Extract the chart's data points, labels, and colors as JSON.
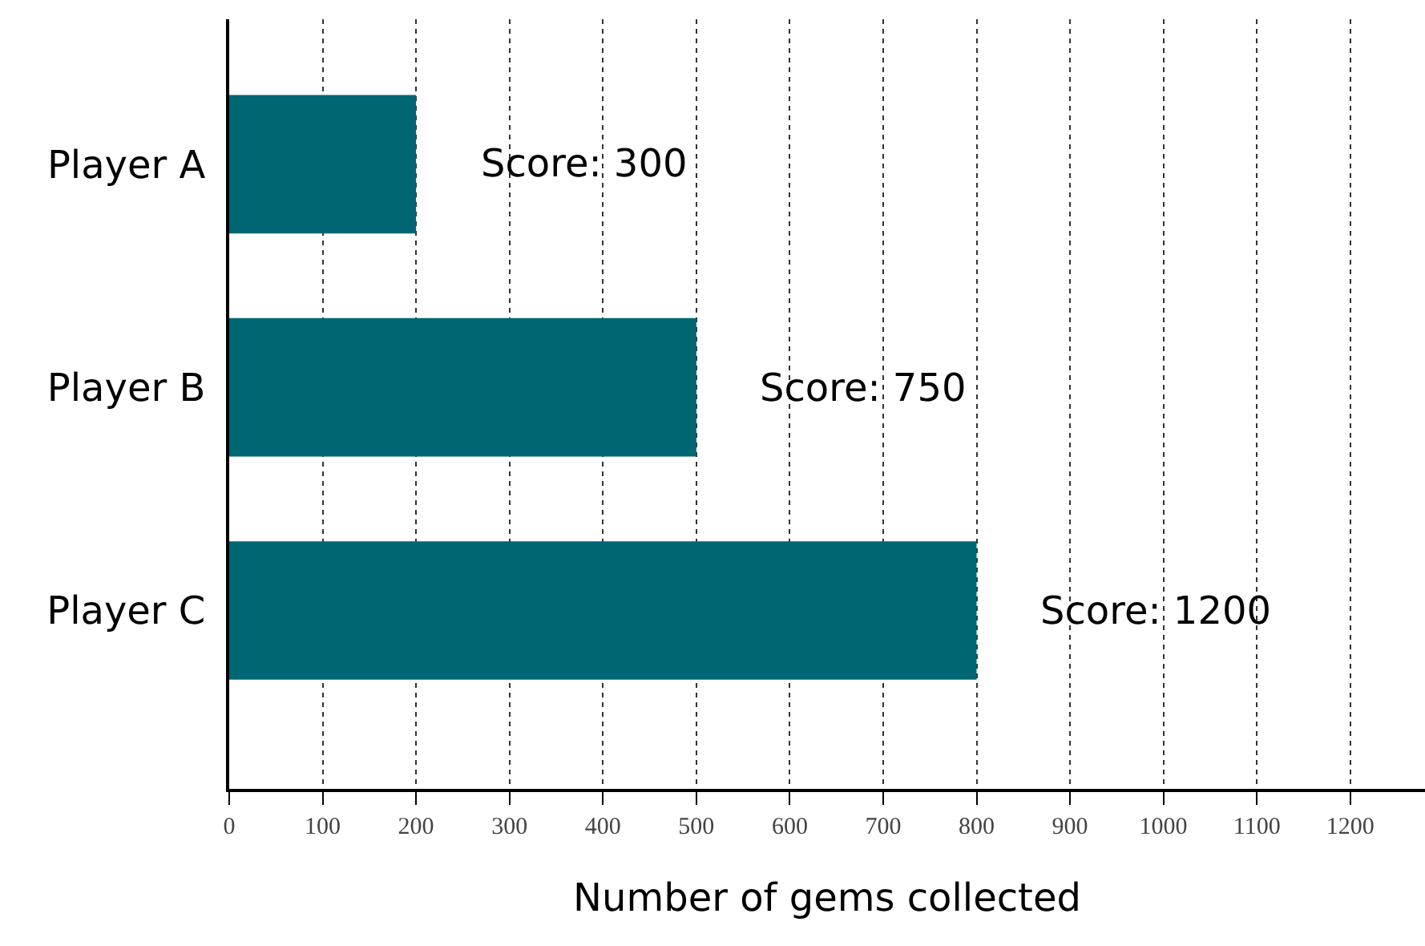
{
  "chart_data": {
    "type": "bar",
    "orientation": "horizontal",
    "xlabel": "Number of gems collected",
    "categories": [
      "Player A",
      "Player B",
      "Player C"
    ],
    "values": [
      200,
      500,
      800
    ],
    "annotations": [
      {
        "text": "Score: 300",
        "x": 200,
        "y": "Player A"
      },
      {
        "text": "Score: 750",
        "x": 500,
        "y": "Player B"
      },
      {
        "text": "Score: 1200",
        "x": 800,
        "y": "Player C"
      }
    ],
    "color": "#006674",
    "xlim": [
      0,
      1280
    ],
    "xticks": [
      0,
      100,
      200,
      300,
      400,
      500,
      600,
      700,
      800,
      900,
      1000,
      1100,
      1200
    ],
    "grid": "x"
  }
}
